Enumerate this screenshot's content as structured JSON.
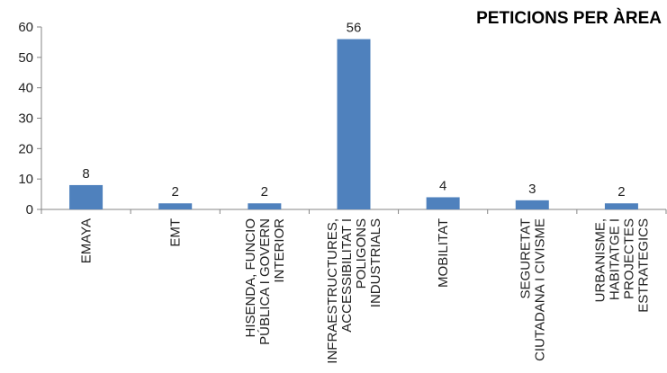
{
  "chart_data": {
    "type": "bar",
    "title": "PETICIONS PER ÀREA",
    "xlabel": "",
    "ylabel": "",
    "ylim": [
      0,
      60
    ],
    "yticks": [
      0,
      10,
      20,
      30,
      40,
      50,
      60
    ],
    "grid": false,
    "legend": "none",
    "categories": [
      [
        "EMAYA"
      ],
      [
        "EMT"
      ],
      [
        "HISENDA, FUNCIO",
        "PÚBLICA I GOVERN",
        "INTERIOR"
      ],
      [
        "INFRAESTRUCTURES,",
        "ACCESSIBILITAT I",
        "POLIGONS",
        "INDUSTRIALS"
      ],
      [
        "MOBILITAT"
      ],
      [
        "SEGURETAT",
        "CIUTADANA I CIVISME"
      ],
      [
        "URBANISME,",
        "HABITATGE I",
        "PROJECTES",
        "ESTRATEGICS"
      ]
    ],
    "values": [
      8,
      2,
      2,
      56,
      4,
      3,
      2
    ],
    "data_labels": [
      "8",
      "2",
      "2",
      "56",
      "4",
      "3",
      "2"
    ],
    "colors": {
      "bar": "#4f81bd",
      "axis": "#868686",
      "text": "#222222"
    }
  }
}
